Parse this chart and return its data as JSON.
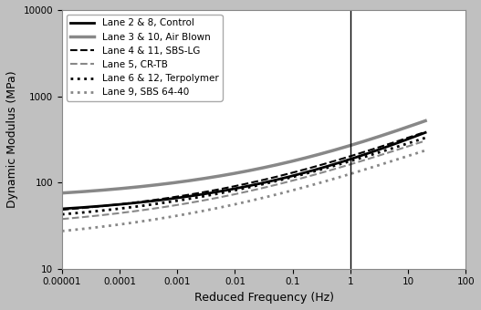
{
  "xlabel": "Reduced Frequency (Hz)",
  "ylabel": "Dynamic Modulus (MPa)",
  "vline_x": 1.0,
  "legend_entries": [
    "Lane 2 & 8, Control",
    "Lane 3 & 10, Air Blown",
    "Lane 4 & 11, SBS-LG",
    "Lane 5, CR-TB",
    "Lane 6 & 12, Terpolymer",
    "Lane 9, SBS 64-40"
  ],
  "line_configs": [
    {
      "color": "#000000",
      "linestyle": "-",
      "linewidth": 2.0
    },
    {
      "color": "#888888",
      "linestyle": "-",
      "linewidth": 2.5
    },
    {
      "color": "#000000",
      "linestyle": "--",
      "linewidth": 1.5
    },
    {
      "color": "#888888",
      "linestyle": "--",
      "linewidth": 1.5
    },
    {
      "color": "#000000",
      "linestyle": ":",
      "linewidth": 2.0
    },
    {
      "color": "#888888",
      "linestyle": ":",
      "linewidth": 2.0
    }
  ],
  "curve_params": [
    {
      "d_min": 1.6,
      "d_max": 3.92,
      "b": -0.9,
      "g": 0.45
    },
    {
      "d_min": 1.78,
      "d_max": 3.95,
      "b": -0.85,
      "g": 0.44
    },
    {
      "d_min": 1.55,
      "d_max": 3.68,
      "b": -0.6,
      "g": 0.42
    },
    {
      "d_min": 1.42,
      "d_max": 3.58,
      "b": -0.55,
      "g": 0.4
    },
    {
      "d_min": 1.48,
      "d_max": 3.62,
      "b": -0.58,
      "g": 0.4
    },
    {
      "d_min": 1.25,
      "d_max": 3.5,
      "b": -0.5,
      "g": 0.38
    }
  ],
  "background_color": "#c0c0c0",
  "plot_bg_color": "#ffffff",
  "figsize": [
    5.27,
    3.4
  ],
  "dpi": 100
}
